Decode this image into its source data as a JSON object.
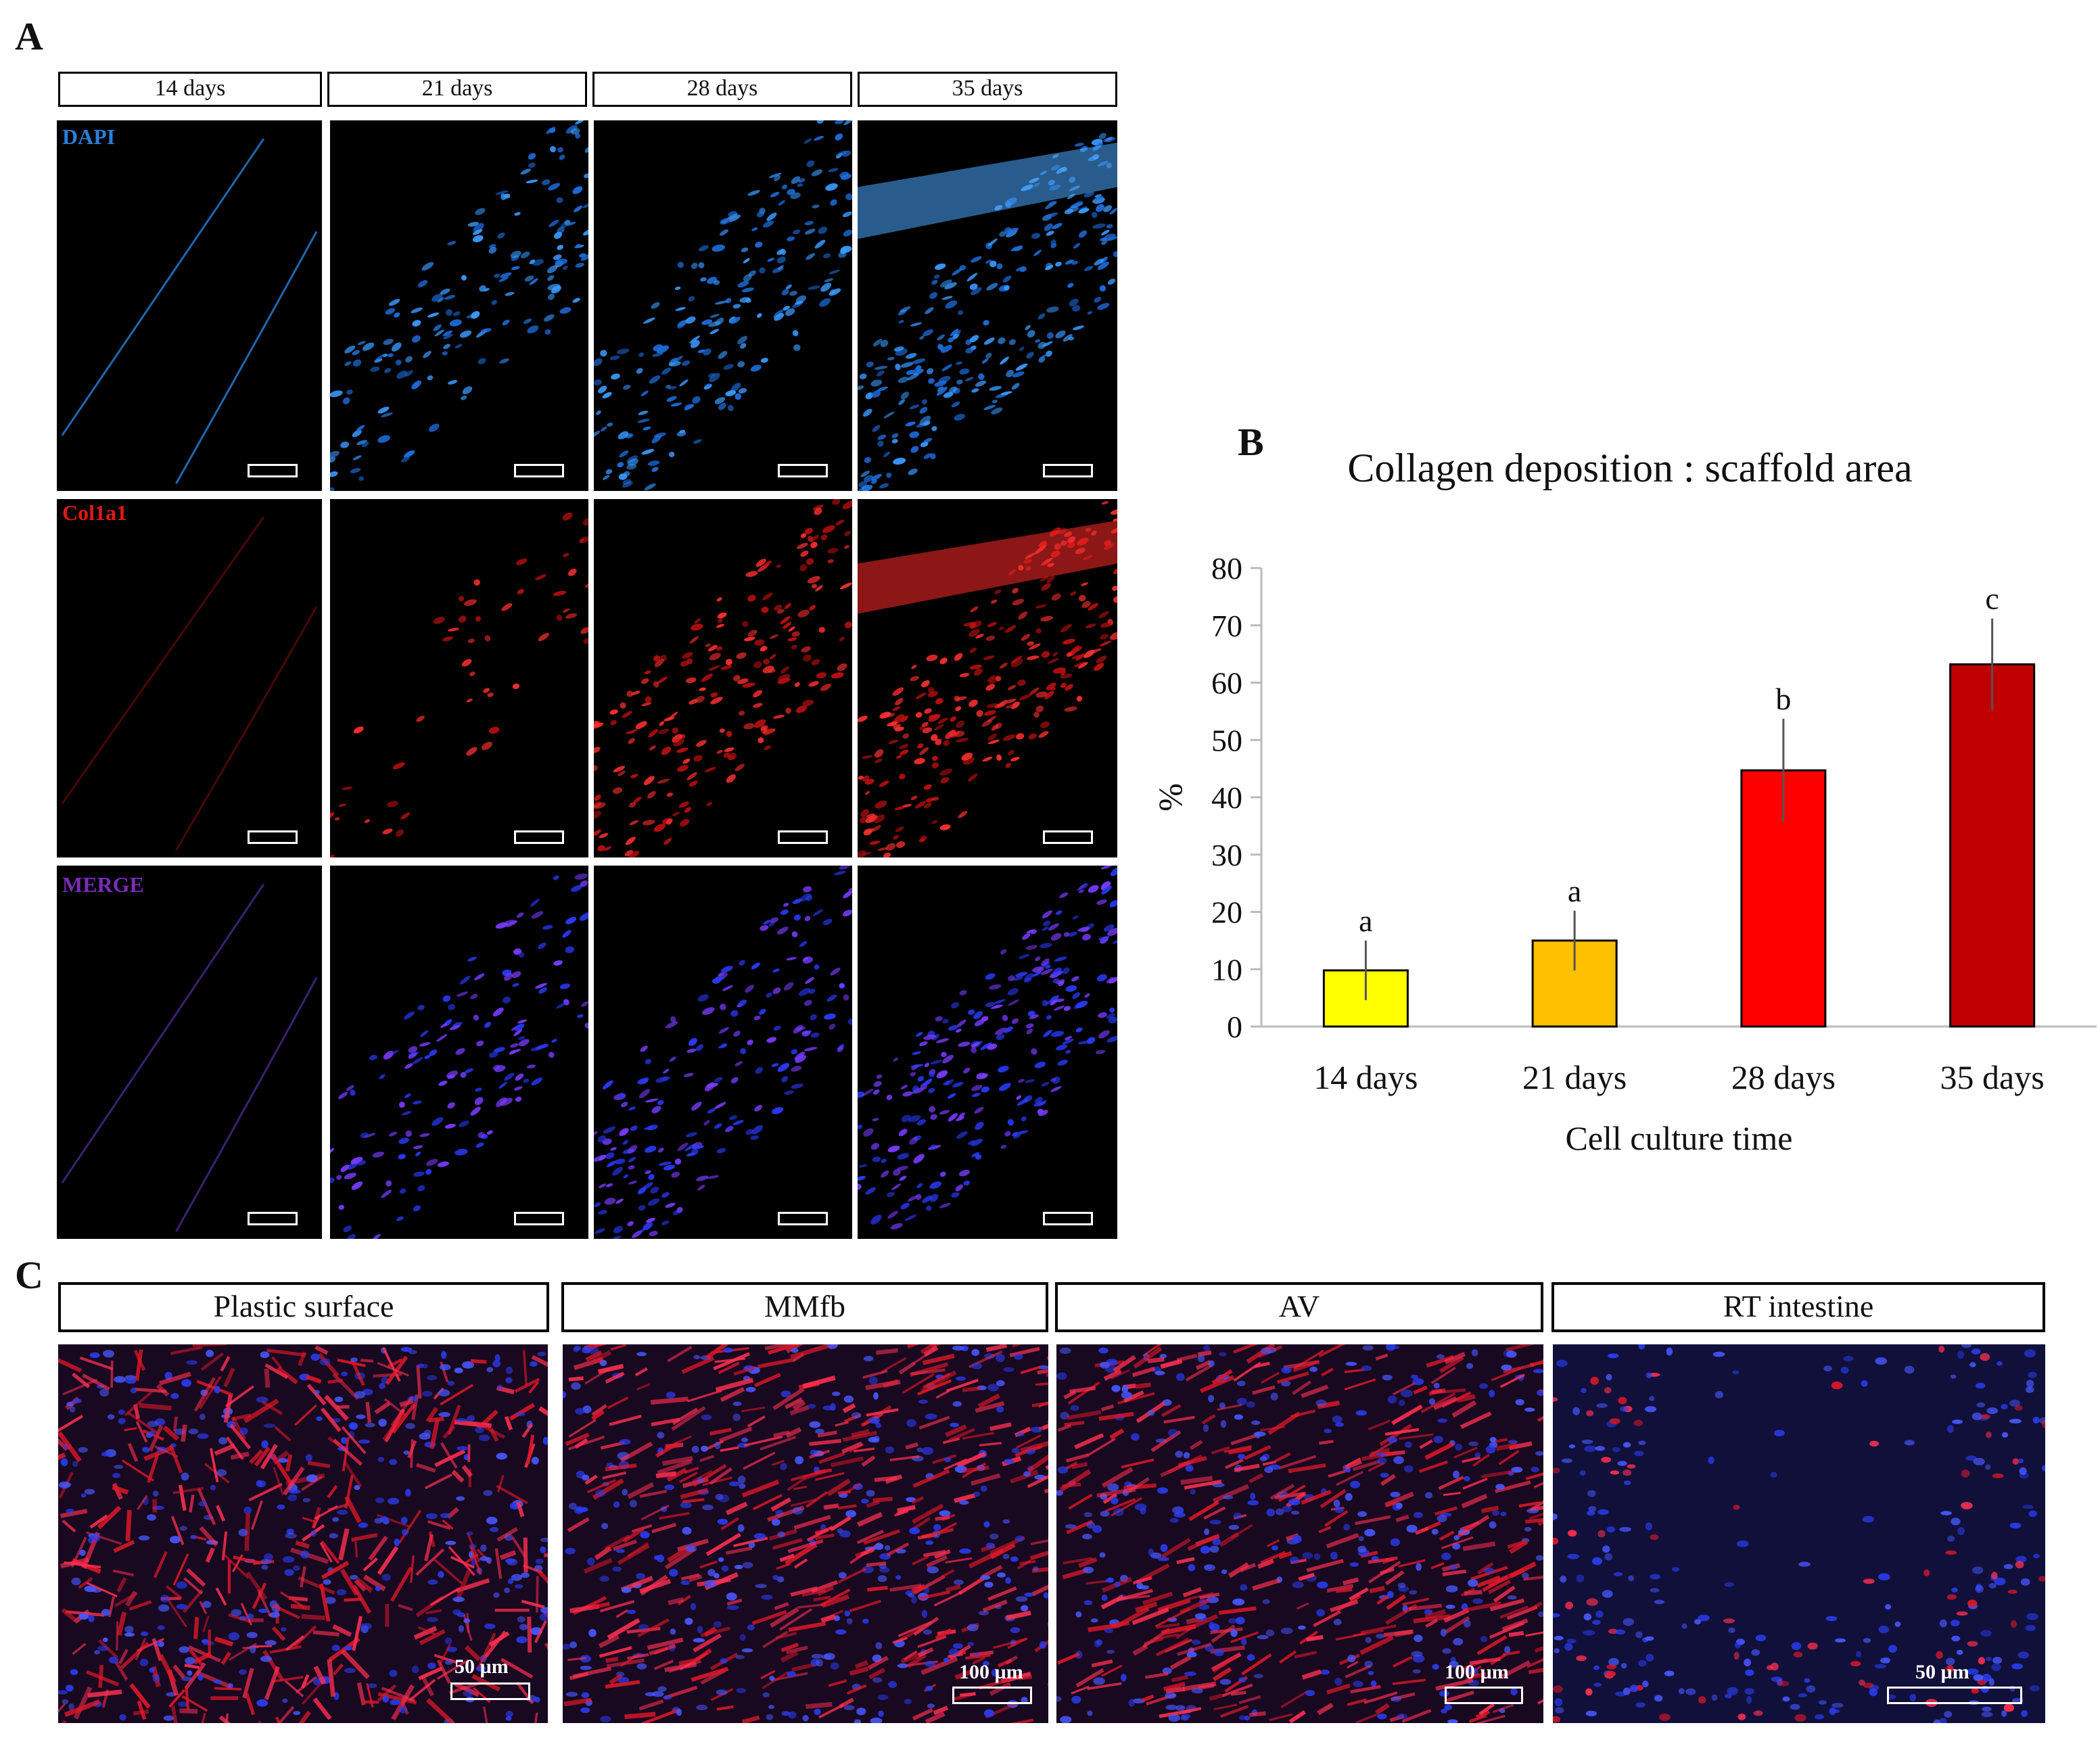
{
  "panel_labels": {
    "a": "A",
    "b": "B",
    "c": "C"
  },
  "panel_a": {
    "columns": [
      "14  days",
      "21  days",
      "28 days",
      "35 days"
    ],
    "rows": [
      {
        "label": "DAPI",
        "color": "#2a7fd8"
      },
      {
        "label": "Col1a1",
        "color": "#e01818"
      },
      {
        "label": "MERGE",
        "color": "#7a2cb8"
      }
    ]
  },
  "panel_c": {
    "columns": [
      "Plastic surface",
      "MMfb",
      "AV",
      "RT intestine"
    ],
    "scale_labels": [
      "50 µm",
      "100 µm",
      "100 µm",
      "50 µm"
    ]
  },
  "chart_data": {
    "type": "bar",
    "title": "Collagen deposition : scaffold area",
    "xlabel": "Cell culture time",
    "ylabel": "%",
    "categories": [
      "14 days",
      "21 days",
      "28 days",
      "35 days"
    ],
    "values": [
      9.8,
      15.0,
      44.7,
      63.2
    ],
    "errors": [
      5.2,
      5.2,
      9.0,
      8.0
    ],
    "significance": [
      "a",
      "a",
      "b",
      "c"
    ],
    "colors": [
      "#ffff00",
      "#ffc000",
      "#ff0000",
      "#c00000"
    ],
    "ylim": [
      0,
      80
    ],
    "yticks": [
      0,
      10,
      20,
      30,
      40,
      50,
      60,
      70,
      80
    ],
    "grid": false
  }
}
